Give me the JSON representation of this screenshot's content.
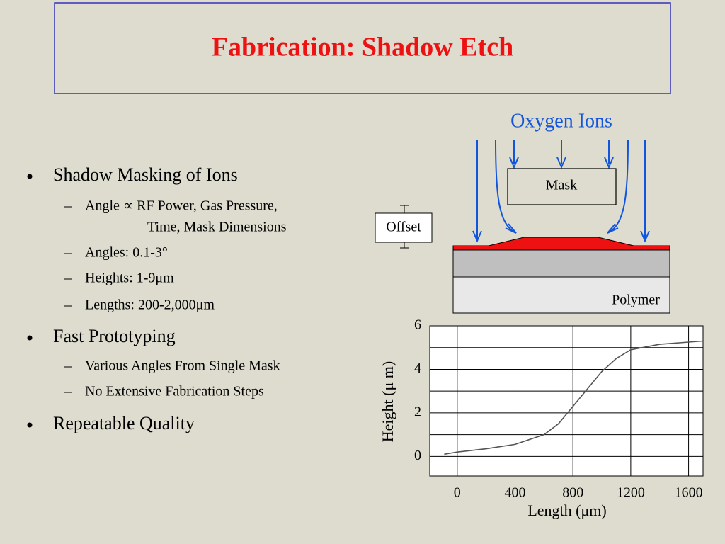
{
  "title": "Fabrication: Shadow Etch",
  "bullets": [
    {
      "text": "Shadow Masking of Ions",
      "items": [
        {
          "lines": [
            "Angle ∝ RF Power, Gas Pressure,",
            "Time, Mask Dimensions"
          ]
        },
        {
          "lines": [
            "Angles:   0.1-3°"
          ]
        },
        {
          "lines": [
            "Heights:  1-9μm"
          ]
        },
        {
          "lines": [
            "Lengths:  200-2,000μm"
          ]
        }
      ]
    },
    {
      "text": "Fast Prototyping",
      "items": [
        {
          "lines": [
            "Various Angles From Single Mask"
          ]
        },
        {
          "lines": [
            "No Extensive Fabrication Steps"
          ]
        }
      ]
    },
    {
      "text": "Repeatable Quality",
      "items": []
    }
  ],
  "diagram": {
    "ions_label": "Oxygen Ions",
    "mask_label": "Mask",
    "offset_label": "Offset",
    "substrate_label": "Polymer"
  },
  "chart_data": {
    "type": "line",
    "x_label": "Length (μm)",
    "y_label": "Height (μ m)",
    "x": [
      -90,
      0,
      200,
      400,
      600,
      700,
      800,
      900,
      1000,
      1100,
      1200,
      1400,
      1600,
      1700
    ],
    "series": [
      {
        "color": "#555555",
        "values": [
          0.1,
          0.2,
          0.35,
          0.55,
          1.0,
          1.5,
          2.3,
          3.1,
          3.9,
          4.5,
          4.9,
          5.15,
          5.25,
          5.3
        ]
      }
    ],
    "xlim": [
      -190,
      1700
    ],
    "ylim": [
      -0.9,
      6
    ],
    "xticks": [
      0,
      400,
      800,
      1200,
      1600
    ],
    "yticks": [
      0,
      2,
      4,
      6
    ],
    "ygrid": [
      0,
      1,
      2,
      3,
      4,
      5,
      6
    ],
    "grid": true
  }
}
